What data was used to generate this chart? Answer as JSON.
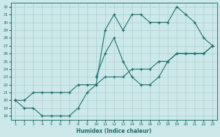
{
  "xlabel": "Humidex (Indice chaleur)",
  "x": [
    1,
    2,
    3,
    4,
    5,
    6,
    7,
    8,
    9,
    10,
    11,
    12,
    13,
    14,
    15,
    16,
    17,
    18,
    19,
    20,
    21,
    22,
    23
  ],
  "line1": [
    20,
    20,
    21,
    21,
    21,
    21,
    21,
    22,
    22,
    22,
    23,
    23,
    23,
    24,
    24,
    24,
    25,
    25,
    26,
    26,
    26,
    26,
    27
  ],
  "line2": [
    20,
    19,
    19,
    18,
    18,
    18,
    18,
    19,
    21,
    22,
    29,
    31,
    29,
    31,
    31,
    30,
    30,
    30,
    32,
    31,
    30,
    28,
    27
  ],
  "line3": [
    20,
    null,
    null,
    null,
    null,
    null,
    null,
    null,
    null,
    23,
    26,
    28,
    25,
    23,
    22,
    22,
    23,
    25,
    26,
    26,
    26,
    26,
    27
  ],
  "bg_color": "#cce8e8",
  "grid_color": "#aacfcf",
  "line_color": "#1a6b6b",
  "ylim": [
    17.5,
    32.5
  ],
  "xlim": [
    0.5,
    23.5
  ],
  "yticks": [
    18,
    19,
    20,
    21,
    22,
    23,
    24,
    25,
    26,
    27,
    28,
    29,
    30,
    31,
    32
  ],
  "xticks": [
    1,
    2,
    3,
    4,
    5,
    6,
    7,
    8,
    9,
    10,
    11,
    12,
    13,
    14,
    15,
    16,
    17,
    18,
    19,
    20,
    21,
    22,
    23
  ]
}
